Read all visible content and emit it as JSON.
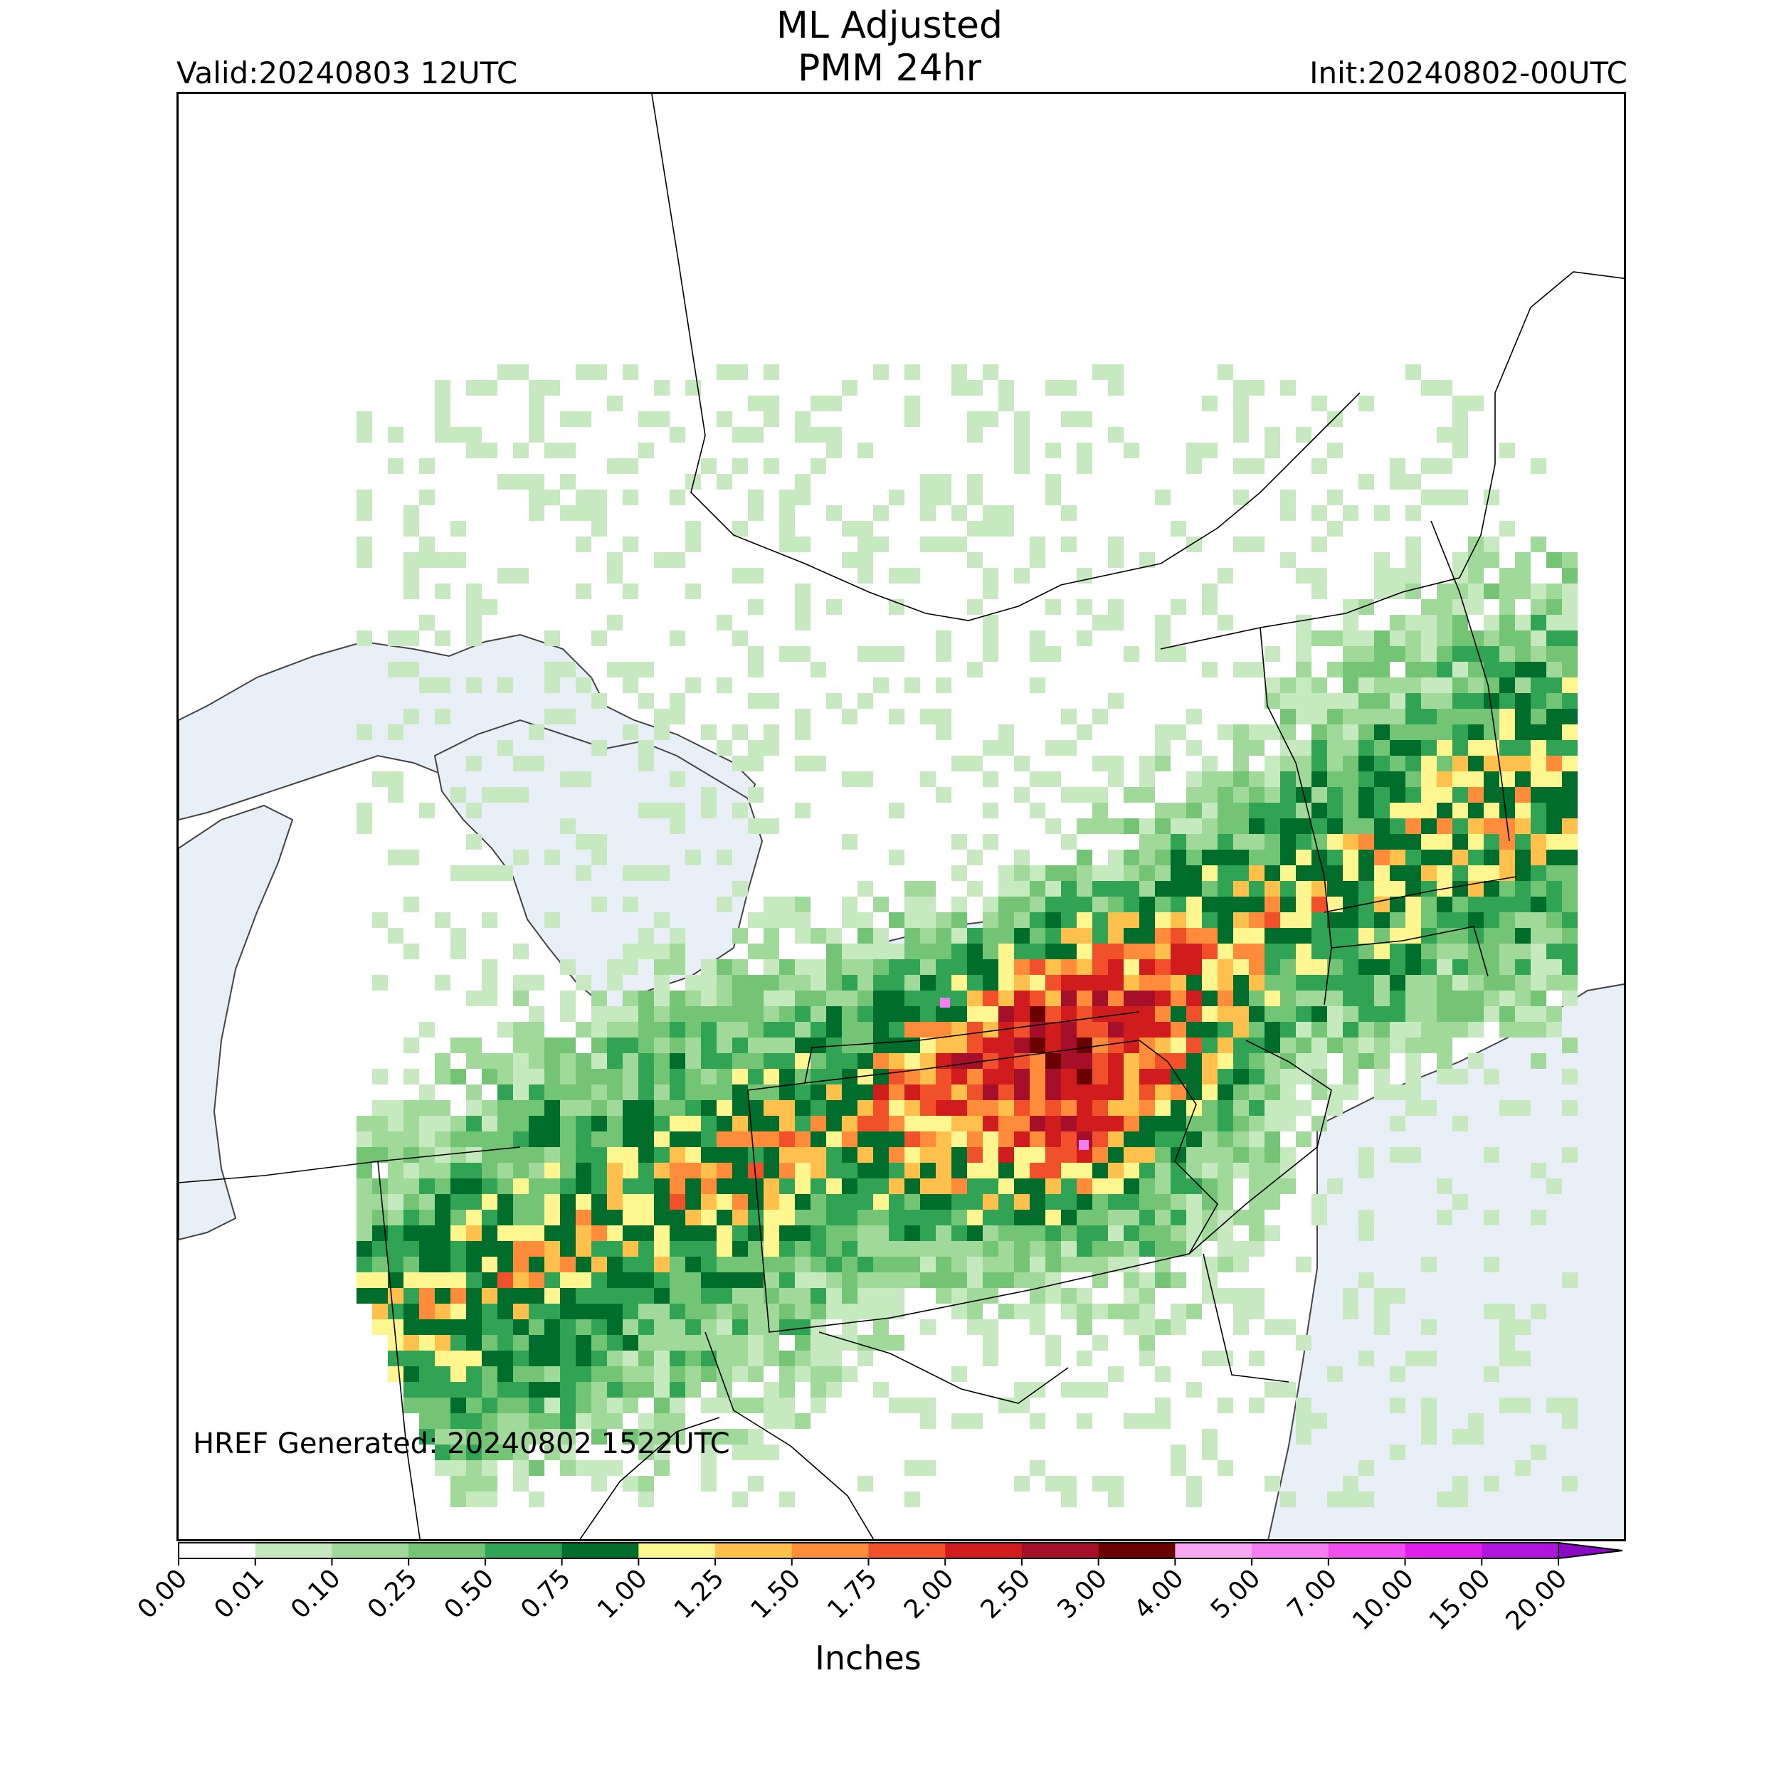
{
  "title": {
    "line1": "ML Adjusted",
    "line2": "PMM 24hr"
  },
  "header": {
    "valid": "Valid:20240803 12UTC",
    "init": "Init:20240802-00UTC"
  },
  "map": {
    "annotation": "HREF Generated: 20240802 1522UTC",
    "region": "Northeastern United States, Great Lakes and southern Quebec",
    "water_color": "#e8eff7",
    "border_color": "#000000"
  },
  "colorbar": {
    "label": "Inches",
    "ticks": [
      "0.00",
      "0.01",
      "0.10",
      "0.25",
      "0.50",
      "0.75",
      "1.00",
      "1.25",
      "1.50",
      "1.75",
      "2.00",
      "2.50",
      "3.00",
      "4.00",
      "5.00",
      "7.00",
      "10.00",
      "15.00",
      "20.00"
    ],
    "colors": [
      "#ffffff",
      "#c7e9c0",
      "#a1d99b",
      "#74c476",
      "#31a354",
      "#006d2c",
      "#fff68f",
      "#ffc04c",
      "#ff8c3a",
      "#f0502a",
      "#d01c1c",
      "#a50f2a",
      "#6b0000",
      "#f6a8f2",
      "#f47ff0",
      "#f24ff0",
      "#e01fea",
      "#b015de",
      "#8a08c8"
    ],
    "extend": "max"
  }
}
